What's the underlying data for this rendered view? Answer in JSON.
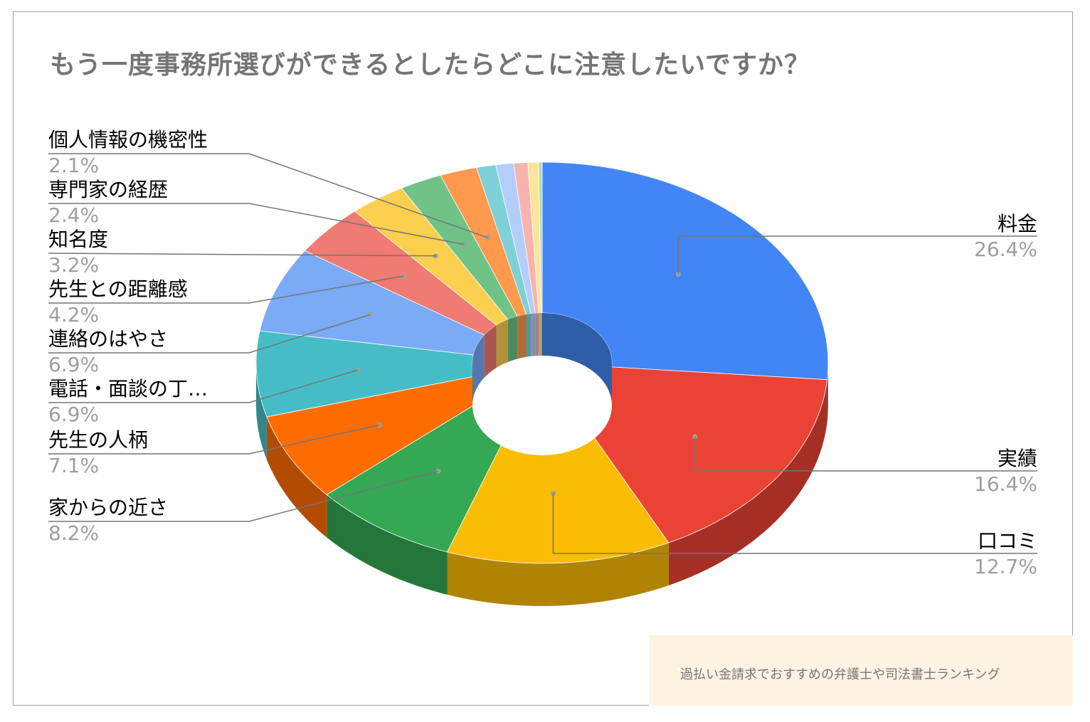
{
  "chart_data": {
    "type": "pie",
    "style": "3d-donut",
    "title": "もう一度事務所選びができるとしたらどこに注意したいですか？",
    "slices": [
      {
        "label": "料金",
        "value": 26.4,
        "value_label": "26.4%",
        "color": "#4285f4",
        "side_color": "#2f5ea9",
        "labeled": true
      },
      {
        "label": "実績",
        "value": 16.4,
        "value_label": "16.4%",
        "color": "#ea4335",
        "side_color": "#a52f25",
        "labeled": true
      },
      {
        "label": "口コミ",
        "value": 12.7,
        "value_label": "12.7%",
        "color": "#fbbc04",
        "side_color": "#b08403",
        "labeled": true
      },
      {
        "label": "家からの近さ",
        "value": 8.2,
        "value_label": "8.2%",
        "color": "#34a853",
        "side_color": "#24763a",
        "labeled": true
      },
      {
        "label": "先生の人柄",
        "value": 7.1,
        "value_label": "7.1%",
        "color": "#ff6d01",
        "side_color": "#b34c01",
        "labeled": true
      },
      {
        "label": "電話・面談の丁…",
        "value": 6.9,
        "value_label": "6.9%",
        "color": "#46bdc6",
        "side_color": "#31858b",
        "labeled": true
      },
      {
        "label": "連絡のはやさ",
        "value": 6.9,
        "value_label": "6.9%",
        "color": "#7baaf7",
        "side_color": "#5677ad",
        "labeled": true
      },
      {
        "label": "先生との距離感",
        "value": 4.2,
        "value_label": "4.2%",
        "color": "#f07b72",
        "side_color": "#a85650",
        "labeled": true
      },
      {
        "label": "知名度",
        "value": 3.2,
        "value_label": "3.2%",
        "color": "#fcd04f",
        "side_color": "#b19237",
        "labeled": true
      },
      {
        "label": "専門家の経歴",
        "value": 2.4,
        "value_label": "2.4%",
        "color": "#71c287",
        "side_color": "#4f885f",
        "labeled": true
      },
      {
        "label": "個人情報の機密性",
        "value": 2.1,
        "value_label": "2.1%",
        "color": "#ff994d",
        "side_color": "#b36b36",
        "labeled": true
      },
      {
        "label": "",
        "value": 1.1,
        "value_label": "",
        "color": "#7ed1d7",
        "side_color": "#589397",
        "labeled": false
      },
      {
        "label": "",
        "value": 1.0,
        "value_label": "",
        "color": "#b3cefb",
        "side_color": "#7e90b0",
        "labeled": false
      },
      {
        "label": "",
        "value": 0.8,
        "value_label": "",
        "color": "#f7b4ae",
        "side_color": "#ad7e7a",
        "labeled": false
      },
      {
        "label": "",
        "value": 0.6,
        "value_label": "",
        "color": "#fde49b",
        "side_color": "#b1a06d",
        "labeled": false
      },
      {
        "label": "",
        "value": 0.2,
        "value_label": "",
        "color": "#aedcba",
        "side_color": "#7a9a82",
        "labeled": false
      }
    ],
    "legend": "labels-with-leader-lines"
  },
  "watermark": {
    "text": "過払い金請求でおすすめの弁護士や司法書士ランキング",
    "background": "#fff3e3"
  },
  "colors": {
    "title": "#757575",
    "label": "#000000",
    "value": "#9e9e9e",
    "leader": "#757575",
    "frame": "#9e9e9e"
  }
}
